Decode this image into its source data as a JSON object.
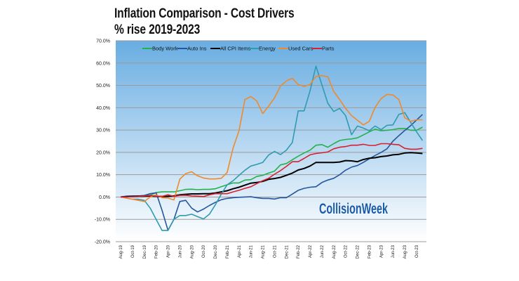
{
  "chart_data": {
    "type": "line",
    "title": "Inflation Comparison - Cost Drivers",
    "subtitle": "% rise  2019-2023",
    "xlabel": "",
    "ylabel": "",
    "ylim": [
      -20,
      70
    ],
    "yticks": [
      "70.0%",
      "60.0%",
      "50.0%",
      "40.0%",
      "30.0%",
      "20.0%",
      "10.0%",
      "0.0%",
      "-10.0%",
      "-20.0%"
    ],
    "ytick_values": [
      70,
      60,
      50,
      40,
      30,
      20,
      10,
      0,
      -10,
      -20
    ],
    "grid": true,
    "legend_position": "top",
    "x_start": "Aug-19",
    "x_end": "Nov-23",
    "x_step": "monthly",
    "xtick_labels": [
      "Aug-19",
      "Oct-19",
      "Dec-19",
      "Feb-20",
      "Apr-20",
      "Jun-20",
      "Aug-20",
      "Oct-20",
      "Dec-20",
      "Feb-21",
      "Apr-21",
      "Jun-21",
      "Aug-21",
      "Oct-21",
      "Dec-21",
      "Feb-22",
      "Apr-22",
      "Jun-22",
      "Aug-22",
      "Oct-22",
      "Dec-22",
      "Feb-23",
      "Apr-23",
      "Jun-23",
      "Aug-23",
      "Oct-23"
    ],
    "series": [
      {
        "name": "Body Work",
        "color": "#22b24c",
        "values": [
          0,
          0.4,
          0.5,
          0.5,
          0.6,
          0.8,
          2,
          2.3,
          2.3,
          2.3,
          2.8,
          3.4,
          3.5,
          3.3,
          3.4,
          3.4,
          3.7,
          4.6,
          5.5,
          6.3,
          6.3,
          7.6,
          7.8,
          9.2,
          9.7,
          10.7,
          11.6,
          14.4,
          15,
          16.7,
          18.3,
          19.7,
          21,
          23.2,
          23.5,
          22.3,
          23.9,
          25.3,
          25.8,
          26,
          26.5,
          27.8,
          29.2,
          30.4,
          29.7,
          29.9,
          30.2,
          30.7,
          30.7,
          29.9,
          29.9,
          31.3
        ]
      },
      {
        "name": "Auto Ins",
        "color": "#24569e",
        "values": [
          0,
          0.4,
          0.5,
          0.5,
          0.7,
          1.5,
          1.9,
          -6,
          -14.9,
          -10,
          -2,
          -1.5,
          -5,
          -6.7,
          -5.4,
          -3.8,
          -2.4,
          -1.2,
          -0.6,
          -0.3,
          -0.1,
          0,
          0.1,
          -0.3,
          -0.6,
          -0.6,
          -0.9,
          -0.3,
          -0.3,
          1.3,
          3,
          3.9,
          4.4,
          4.6,
          6.5,
          7.6,
          8.4,
          10,
          12,
          13.4,
          14.1,
          15.5,
          17.1,
          18.6,
          20,
          21.6,
          25,
          27.5,
          29.8,
          32,
          34.5,
          37
        ]
      },
      {
        "name": "All CPI Items",
        "color": "#000000",
        "values": [
          0,
          0.1,
          0.2,
          0.3,
          0.4,
          0.5,
          0.3,
          0.2,
          0.3,
          0.5,
          1,
          1.2,
          1.4,
          1.4,
          1.5,
          1.5,
          1.8,
          2.3,
          2.8,
          3.7,
          4.4,
          5.3,
          6.2,
          6.5,
          7,
          7.9,
          8.3,
          8.8,
          9.7,
          10.7,
          12.1,
          12.8,
          13.9,
          15.5,
          15.5,
          15.5,
          15.5,
          15.7,
          16.3,
          16.2,
          15.8,
          16.8,
          17.4,
          17.6,
          18.1,
          18.4,
          18.9,
          19.1,
          19.7,
          19.9,
          19.7,
          19.5
        ]
      },
      {
        "name": "Energy",
        "color": "#2f9bb0",
        "values": [
          0,
          -0.5,
          -1,
          -1,
          -1.5,
          -5,
          -10,
          -15,
          -15,
          -10,
          -8.3,
          -8.3,
          -7.7,
          -8.8,
          -9.8,
          -7.7,
          -3.5,
          1.3,
          5.5,
          7.3,
          9.7,
          12,
          13.9,
          14.6,
          15.5,
          18.8,
          20.4,
          19,
          21,
          24.4,
          38.6,
          38.6,
          47.6,
          58.6,
          50.2,
          42,
          38.3,
          39.7,
          36.5,
          27.9,
          31.8,
          30.9,
          29.7,
          31.8,
          30.2,
          32.1,
          32.3,
          37,
          37.8,
          33.4,
          29.2,
          25.3
        ]
      },
      {
        "name": "Used Cars",
        "color": "#ef8a2c",
        "values": [
          0,
          -0.5,
          -1,
          -1.5,
          -2,
          0,
          1,
          -0.3,
          -0.5,
          -1.3,
          8,
          10.5,
          11.3,
          9.5,
          8.5,
          8.1,
          8.1,
          8.4,
          11,
          22,
          29.7,
          43.7,
          45,
          43,
          37.4,
          40.7,
          44.4,
          49.7,
          52,
          53.2,
          50.4,
          49.5,
          50.4,
          54,
          54.4,
          53.9,
          47.3,
          43.7,
          39.7,
          36.5,
          34.4,
          32.3,
          33.9,
          40.2,
          44.1,
          46,
          45.7,
          43.7,
          35.5,
          33.9,
          34.6,
          34.6
        ]
      },
      {
        "name": "Parts",
        "color": "#d8202e",
        "values": [
          0,
          0,
          0.1,
          0.2,
          0.5,
          0.7,
          0.3,
          0.3,
          1,
          0.3,
          0.7,
          0.8,
          0.5,
          0.4,
          0.2,
          1,
          1.5,
          1.5,
          1.5,
          2.3,
          3,
          3.9,
          4.6,
          6,
          7.3,
          8.4,
          10.2,
          11.8,
          13.7,
          15.8,
          15.8,
          17.3,
          18.9,
          19.5,
          19.8,
          20.2,
          21.6,
          22.3,
          22.6,
          23.2,
          23.2,
          23.6,
          23.1,
          23.1,
          23.9,
          23.9,
          23.6,
          23.4,
          21.8,
          21.4,
          21.4,
          21.8
        ]
      }
    ]
  },
  "logo": {
    "text": "CollisionWeek",
    "color": "#1a5aa8"
  },
  "plot_background": {
    "top": "#69ade2",
    "bottom": "#ffffff"
  }
}
